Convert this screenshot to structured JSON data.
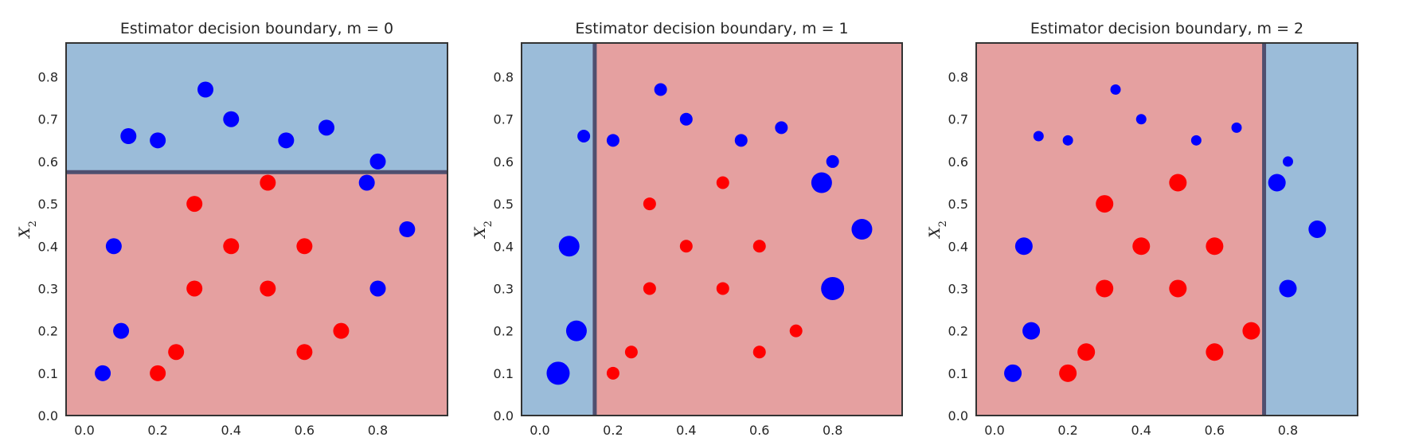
{
  "chart_data": [
    {
      "type": "scatter",
      "title": "Estimator decision boundary, m = 0",
      "ylabel": "X",
      "ylabel_sub": "2",
      "xlim": [
        -0.05,
        0.99
      ],
      "ylim": [
        0.0,
        0.88
      ],
      "xticks": [
        "0.0",
        "0.2",
        "0.4",
        "0.6",
        "0.8"
      ],
      "yticks": [
        "0.0",
        "0.1",
        "0.2",
        "0.3",
        "0.4",
        "0.5",
        "0.6",
        "0.7",
        "0.8"
      ],
      "grid": false,
      "split": {
        "axis": "y",
        "threshold": 0.575,
        "low_class": "red",
        "high_class": "blue"
      },
      "series": [
        {
          "color": "#0000ff",
          "x": [
            0.05,
            0.1,
            0.08,
            0.12,
            0.2,
            0.33,
            0.4,
            0.55,
            0.66,
            0.8,
            0.77,
            0.88,
            0.8
          ],
          "y": [
            0.1,
            0.2,
            0.4,
            0.66,
            0.65,
            0.77,
            0.7,
            0.65,
            0.68,
            0.6,
            0.55,
            0.44,
            0.3
          ],
          "weight": [
            1,
            1,
            1,
            1,
            1,
            1,
            1,
            1,
            1,
            1,
            1,
            1,
            1
          ]
        },
        {
          "color": "#ff0000",
          "x": [
            0.2,
            0.25,
            0.3,
            0.3,
            0.4,
            0.5,
            0.5,
            0.6,
            0.6,
            0.7
          ],
          "y": [
            0.1,
            0.15,
            0.3,
            0.5,
            0.4,
            0.55,
            0.3,
            0.4,
            0.15,
            0.2
          ],
          "weight": [
            1,
            1,
            1,
            1,
            1,
            1,
            1,
            1,
            1,
            1
          ]
        }
      ]
    },
    {
      "type": "scatter",
      "title": "Estimator decision boundary, m = 1",
      "ylabel": "X",
      "ylabel_sub": "2",
      "xlim": [
        -0.05,
        0.99
      ],
      "ylim": [
        0.0,
        0.88
      ],
      "xticks": [
        "0.0",
        "0.2",
        "0.4",
        "0.6",
        "0.8"
      ],
      "yticks": [
        "0.0",
        "0.1",
        "0.2",
        "0.3",
        "0.4",
        "0.5",
        "0.6",
        "0.7",
        "0.8"
      ],
      "grid": false,
      "split": {
        "axis": "x",
        "threshold": 0.15,
        "low_class": "blue",
        "high_class": "red"
      },
      "series": [
        {
          "color": "#0000ff",
          "x": [
            0.05,
            0.1,
            0.08,
            0.12,
            0.2,
            0.33,
            0.4,
            0.55,
            0.66,
            0.8,
            0.77,
            0.88,
            0.8
          ],
          "y": [
            0.1,
            0.2,
            0.4,
            0.66,
            0.65,
            0.77,
            0.7,
            0.65,
            0.68,
            0.6,
            0.55,
            0.44,
            0.3
          ],
          "weight": [
            1.45,
            1.3,
            1.3,
            0.8,
            0.8,
            0.8,
            0.8,
            0.8,
            0.8,
            0.8,
            1.3,
            1.3,
            1.45
          ]
        },
        {
          "color": "#ff0000",
          "x": [
            0.2,
            0.25,
            0.3,
            0.3,
            0.4,
            0.5,
            0.5,
            0.6,
            0.6,
            0.7
          ],
          "y": [
            0.1,
            0.15,
            0.3,
            0.5,
            0.4,
            0.55,
            0.3,
            0.4,
            0.15,
            0.2
          ],
          "weight": [
            0.8,
            0.8,
            0.8,
            0.8,
            0.8,
            0.8,
            0.8,
            0.8,
            0.8,
            0.8
          ]
        }
      ]
    },
    {
      "type": "scatter",
      "title": "Estimator decision boundary, m = 2",
      "ylabel": "X",
      "ylabel_sub": "2",
      "xlim": [
        -0.05,
        0.99
      ],
      "ylim": [
        0.0,
        0.88
      ],
      "xticks": [
        "0.0",
        "0.2",
        "0.4",
        "0.6",
        "0.8"
      ],
      "yticks": [
        "0.0",
        "0.1",
        "0.2",
        "0.3",
        "0.4",
        "0.5",
        "0.6",
        "0.7",
        "0.8"
      ],
      "grid": false,
      "split": {
        "axis": "x",
        "threshold": 0.735,
        "low_class": "red",
        "high_class": "blue"
      },
      "series": [
        {
          "color": "#0000ff",
          "x": [
            0.05,
            0.1,
            0.08,
            0.12,
            0.2,
            0.33,
            0.4,
            0.55,
            0.66,
            0.8,
            0.77,
            0.88,
            0.8
          ],
          "y": [
            0.1,
            0.2,
            0.4,
            0.66,
            0.65,
            0.77,
            0.7,
            0.65,
            0.68,
            0.6,
            0.55,
            0.44,
            0.3
          ],
          "weight": [
            1.1,
            1.1,
            1.1,
            0.65,
            0.65,
            0.65,
            0.65,
            0.65,
            0.65,
            0.65,
            1.1,
            1.1,
            1.1
          ]
        },
        {
          "color": "#ff0000",
          "x": [
            0.2,
            0.25,
            0.3,
            0.3,
            0.4,
            0.5,
            0.5,
            0.6,
            0.6,
            0.7
          ],
          "y": [
            0.1,
            0.15,
            0.3,
            0.5,
            0.4,
            0.55,
            0.3,
            0.4,
            0.15,
            0.2
          ],
          "weight": [
            1.1,
            1.1,
            1.1,
            1.1,
            1.1,
            1.1,
            1.1,
            1.1,
            1.1,
            1.1
          ]
        }
      ]
    }
  ],
  "colors": {
    "blue_region": "#9bbcd9",
    "red_region": "#e5a0a0",
    "boundary": "#4f4f6f",
    "axes_frame": "#333333",
    "text": "#262626"
  }
}
